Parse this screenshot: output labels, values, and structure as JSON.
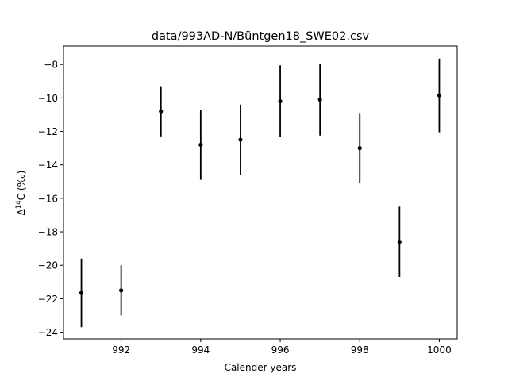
{
  "chart_data": {
    "type": "scatter",
    "title": "data/993AD-N/Büntgen18_SWE02.csv",
    "xlabel": "Calender years",
    "ylabel_prefix": "Δ",
    "ylabel_sup": "14",
    "ylabel_suffix": "C (‰)",
    "xlim": [
      990.55,
      1000.45
    ],
    "ylim": [
      -24.4,
      -6.9
    ],
    "xticks": [
      992,
      994,
      996,
      998,
      1000
    ],
    "yticks": [
      -24,
      -22,
      -20,
      -18,
      -16,
      -14,
      -12,
      -10,
      -8
    ],
    "grid": false,
    "marker_color": "#000000",
    "points": [
      {
        "x": 991,
        "y": -21.65,
        "err": 2.05
      },
      {
        "x": 992,
        "y": -21.5,
        "err": 1.5
      },
      {
        "x": 993,
        "y": -10.8,
        "err": 1.5
      },
      {
        "x": 994,
        "y": -12.8,
        "err": 2.1
      },
      {
        "x": 995,
        "y": -12.5,
        "err": 2.1
      },
      {
        "x": 996,
        "y": -10.2,
        "err": 2.15
      },
      {
        "x": 997,
        "y": -10.1,
        "err": 2.15
      },
      {
        "x": 998,
        "y": -13.0,
        "err": 2.1
      },
      {
        "x": 999,
        "y": -18.6,
        "err": 2.1
      },
      {
        "x": 1000,
        "y": -9.85,
        "err": 2.2
      }
    ]
  }
}
